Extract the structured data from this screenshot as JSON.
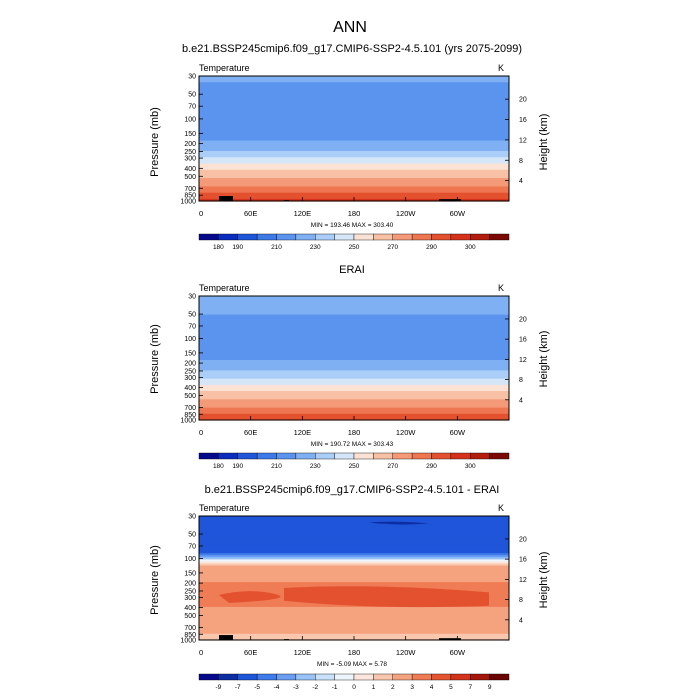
{
  "figure_title": "ANN",
  "chart_data": [
    {
      "type": "heatmap",
      "title": "b.e21.BSSP245cmip6.f09_g17.CMIP6-SSP2-4.5.101 (yrs 2075-2099)",
      "variable": "Temperature",
      "units": "K",
      "ylabel": "Pressure (mb)",
      "ylabel_right": "Height (km)",
      "x_ticks": [
        "0",
        "60E",
        "120E",
        "180",
        "120W",
        "60W"
      ],
      "pressure_ticks": [
        "30",
        "50",
        "70",
        "100",
        "150",
        "200",
        "250",
        "300",
        "400",
        "500",
        "700",
        "850",
        "1000"
      ],
      "height_ticks": [
        "20",
        "16",
        "12",
        "8",
        "4"
      ],
      "stats": "MIN = 193.46  MAX = 303.40",
      "min": 193.46,
      "max": 303.4,
      "colorbar_labels": [
        "180",
        "190",
        "210",
        "230",
        "250",
        "270",
        "290",
        "300"
      ],
      "field": "full",
      "profile": [
        [
          30,
          212
        ],
        [
          50,
          207
        ],
        [
          70,
          203
        ],
        [
          100,
          200
        ],
        [
          150,
          205
        ],
        [
          200,
          212
        ],
        [
          250,
          222
        ],
        [
          300,
          232
        ],
        [
          400,
          247
        ],
        [
          500,
          258
        ],
        [
          700,
          273
        ],
        [
          850,
          283
        ],
        [
          1000,
          292
        ]
      ],
      "topography": true
    },
    {
      "type": "heatmap",
      "title": "ERAI",
      "variable": "Temperature",
      "units": "K",
      "ylabel": "Pressure (mb)",
      "ylabel_right": "Height (km)",
      "x_ticks": [
        "0",
        "60E",
        "120E",
        "180",
        "120W",
        "60W"
      ],
      "pressure_ticks": [
        "30",
        "50",
        "70",
        "100",
        "150",
        "200",
        "250",
        "300",
        "400",
        "500",
        "700",
        "850",
        "1000"
      ],
      "height_ticks": [
        "20",
        "16",
        "12",
        "8",
        "4"
      ],
      "stats": "MIN = 190.72  MAX = 303.43",
      "min": 190.72,
      "max": 303.43,
      "colorbar_labels": [
        "180",
        "190",
        "210",
        "230",
        "250",
        "270",
        "290",
        "300"
      ],
      "field": "full",
      "profile": [
        [
          30,
          214
        ],
        [
          50,
          210
        ],
        [
          70,
          206
        ],
        [
          100,
          203
        ],
        [
          150,
          206
        ],
        [
          200,
          212
        ],
        [
          250,
          220
        ],
        [
          300,
          229
        ],
        [
          400,
          244
        ],
        [
          500,
          255
        ],
        [
          700,
          270
        ],
        [
          850,
          280
        ],
        [
          1000,
          290
        ]
      ],
      "topography": false
    },
    {
      "type": "heatmap",
      "title": "b.e21.BSSP245cmip6.f09_g17.CMIP6-SSP2-4.5.101 - ERAI",
      "variable": "Temperature",
      "units": "K",
      "ylabel": "Pressure (mb)",
      "ylabel_right": "Height (km)",
      "x_ticks": [
        "0",
        "60E",
        "120E",
        "180",
        "120W",
        "60W"
      ],
      "pressure_ticks": [
        "30",
        "50",
        "70",
        "100",
        "150",
        "200",
        "250",
        "300",
        "400",
        "500",
        "700",
        "850",
        "1000"
      ],
      "height_ticks": [
        "20",
        "16",
        "12",
        "8",
        "4"
      ],
      "stats": "MIN =  -5.09  MAX =   5.78",
      "min": -5.09,
      "max": 5.78,
      "colorbar_labels": [
        "-9",
        "-7",
        "-5",
        "-4",
        "-3",
        "-2",
        "-1",
        "0",
        "1",
        "2",
        "3",
        "4",
        "5",
        "7",
        "9"
      ],
      "field": "diff",
      "profile": [
        [
          30,
          -5
        ],
        [
          50,
          -5
        ],
        [
          70,
          -5
        ],
        [
          85,
          -4.5
        ],
        [
          100,
          -1.5
        ],
        [
          120,
          2.5
        ],
        [
          150,
          3
        ],
        [
          200,
          3.5
        ],
        [
          250,
          3.8
        ],
        [
          300,
          4.0
        ],
        [
          400,
          3.5
        ],
        [
          500,
          3
        ],
        [
          700,
          2.5
        ],
        [
          850,
          2.5
        ],
        [
          1000,
          2
        ]
      ],
      "topography": true
    }
  ]
}
